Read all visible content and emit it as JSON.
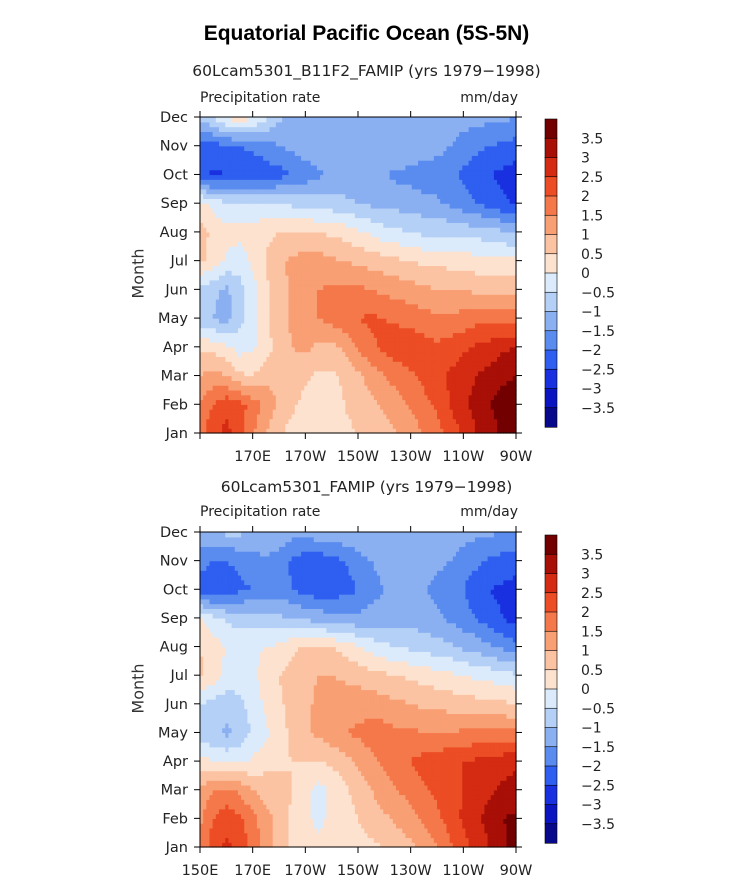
{
  "title": "Equatorial Pacific Ocean (5S-5N)",
  "chart_data": [
    {
      "type": "heatmap",
      "title": "60Lcam5301_B11F2_FAMIP (yrs 1979−1998)",
      "subtitle_left": "Precipitation rate",
      "subtitle_right": "mm/day",
      "ylabel": "Month",
      "xlabel": "",
      "x_tick_labels": [
        "",
        "170E",
        "170W",
        "150W",
        "130W",
        "110W",
        "90W"
      ],
      "x_tick_lons": [
        150,
        170,
        190,
        210,
        230,
        250,
        270
      ],
      "y_tick_labels": [
        "Jan",
        "Feb",
        "Mar",
        "Apr",
        "May",
        "Jun",
        "Jul",
        "Aug",
        "Sep",
        "Oct",
        "Nov",
        "Dec"
      ],
      "levels": [
        -3.5,
        -3,
        -2.5,
        -2,
        -1.5,
        -1,
        -0.5,
        0,
        0.5,
        1,
        1.5,
        2,
        2.5,
        3,
        3.5
      ],
      "colorbar_labels": [
        "3.5",
        "3",
        "2.5",
        "2",
        "1.5",
        "1",
        "0.5",
        "0",
        "−0.5",
        "−1",
        "−1.5",
        "−2",
        "−2.5",
        "−3",
        "−3.5"
      ],
      "colors": [
        "#08088c",
        "#0a14c0",
        "#1830e0",
        "#2e5ff0",
        "#5a8cf0",
        "#8bb0f2",
        "#b4d0f6",
        "#dcebfb",
        "#fde2cf",
        "#fcc3a3",
        "#f99f74",
        "#f5784a",
        "#ec4d25",
        "#d42b12",
        "#a80f06",
        "#720000"
      ],
      "field": {
        "lons": [
          150,
          155,
          160,
          165,
          170,
          175,
          180,
          185,
          190,
          195,
          200,
          205,
          210,
          215,
          220,
          225,
          230,
          235,
          240,
          245,
          250,
          255,
          260,
          265,
          270
        ],
        "months": [
          "Jan",
          "Feb",
          "Mar",
          "Apr",
          "May",
          "Jun",
          "Jul",
          "Aug",
          "Sep",
          "Oct",
          "Nov",
          "Dec"
        ],
        "values": [
          [
            1.8,
            2.4,
            2.6,
            2.3,
            1.6,
            1.0,
            0.6,
            0.3,
            0.2,
            0.2,
            0.3,
            0.4,
            0.5,
            0.6,
            0.8,
            1.0,
            1.2,
            1.5,
            1.8,
            2.2,
            2.6,
            3.0,
            3.3,
            3.6,
            3.8
          ],
          [
            1.5,
            2.0,
            2.4,
            2.2,
            1.8,
            1.3,
            0.9,
            0.6,
            0.3,
            0.2,
            0.3,
            0.5,
            0.7,
            0.9,
            1.1,
            1.3,
            1.6,
            1.9,
            2.1,
            2.5,
            2.9,
            3.2,
            3.5,
            3.7,
            3.8
          ],
          [
            1.0,
            1.2,
            1.0,
            0.6,
            0.5,
            0.8,
            1.0,
            0.9,
            0.6,
            0.4,
            0.4,
            0.6,
            0.9,
            1.2,
            1.5,
            1.7,
            1.9,
            2.1,
            2.3,
            2.6,
            2.8,
            3.0,
            3.2,
            3.4,
            3.5
          ],
          [
            0.4,
            0.3,
            0.1,
            -0.2,
            -0.1,
            0.3,
            0.7,
            1.0,
            1.1,
            0.9,
            0.8,
            1.1,
            1.6,
            1.9,
            2.1,
            2.3,
            2.4,
            2.2,
            2.1,
            2.2,
            2.4,
            2.6,
            2.7,
            2.9,
            3.0
          ],
          [
            -0.9,
            -1.0,
            -1.2,
            -0.7,
            -0.2,
            0.4,
            0.8,
            1.1,
            1.3,
            1.5,
            1.7,
            1.9,
            2.0,
            2.1,
            2.0,
            1.9,
            1.8,
            1.7,
            1.6,
            1.6,
            1.7,
            1.8,
            1.8,
            1.8,
            1.8
          ],
          [
            -0.6,
            -0.9,
            -1.1,
            -0.7,
            -0.2,
            0.4,
            0.8,
            1.1,
            1.3,
            1.5,
            1.6,
            1.6,
            1.6,
            1.5,
            1.4,
            1.3,
            1.2,
            1.1,
            1.0,
            1.0,
            1.0,
            0.9,
            0.9,
            0.9,
            0.8
          ],
          [
            0.6,
            0.3,
            -0.1,
            -0.3,
            0.1,
            0.5,
            0.9,
            1.1,
            1.2,
            1.2,
            1.1,
            1.0,
            0.9,
            0.8,
            0.7,
            0.6,
            0.5,
            0.4,
            0.4,
            0.3,
            0.3,
            0.2,
            0.2,
            0.1,
            0.1
          ],
          [
            0.7,
            0.4,
            0.2,
            0.2,
            0.3,
            0.4,
            0.5,
            0.6,
            0.6,
            0.5,
            0.4,
            0.3,
            0.1,
            -0.1,
            -0.3,
            -0.4,
            -0.5,
            -0.6,
            -0.6,
            -0.6,
            -0.7,
            -0.7,
            -0.8,
            -0.9,
            -1.0
          ],
          [
            0.2,
            -0.2,
            -0.4,
            -0.4,
            -0.5,
            -0.5,
            -0.5,
            -0.6,
            -0.7,
            -0.8,
            -0.8,
            -0.9,
            -1.0,
            -1.1,
            -1.1,
            -1.2,
            -1.2,
            -1.3,
            -1.4,
            -1.6,
            -1.8,
            -2.0,
            -2.2,
            -2.4,
            -2.6
          ],
          [
            -2.3,
            -2.6,
            -2.5,
            -2.4,
            -2.4,
            -2.3,
            -2.2,
            -2.0,
            -1.8,
            -1.6,
            -1.4,
            -1.3,
            -1.3,
            -1.4,
            -1.5,
            -1.6,
            -1.7,
            -1.8,
            -1.8,
            -1.9,
            -2.1,
            -2.3,
            -2.5,
            -2.6,
            -2.8
          ],
          [
            -2.1,
            -2.2,
            -2.1,
            -2.0,
            -1.9,
            -1.7,
            -1.5,
            -1.4,
            -1.2,
            -1.1,
            -1.0,
            -1.0,
            -1.0,
            -1.0,
            -1.0,
            -1.0,
            -1.1,
            -1.2,
            -1.3,
            -1.5,
            -1.7,
            -1.9,
            -2.0,
            -2.1,
            -2.2
          ],
          [
            -0.9,
            -0.5,
            0.1,
            0.3,
            0.1,
            -0.4,
            -0.9,
            -1.2,
            -1.3,
            -1.3,
            -1.2,
            -1.1,
            -1.1,
            -1.1,
            -1.1,
            -1.1,
            -1.1,
            -1.1,
            -1.2,
            -1.2,
            -1.3,
            -1.3,
            -1.4,
            -1.4,
            -1.5
          ]
        ]
      }
    },
    {
      "type": "heatmap",
      "title": "60Lcam5301_FAMIP (yrs 1979−1998)",
      "subtitle_left": "Precipitation rate",
      "subtitle_right": "mm/day",
      "ylabel": "Month",
      "xlabel": "",
      "x_tick_labels": [
        "150E",
        "170E",
        "170W",
        "150W",
        "130W",
        "110W",
        "90W"
      ],
      "x_tick_lons": [
        150,
        170,
        190,
        210,
        230,
        250,
        270
      ],
      "y_tick_labels": [
        "Jan",
        "Feb",
        "Mar",
        "Apr",
        "May",
        "Jun",
        "Jul",
        "Aug",
        "Sep",
        "Oct",
        "Nov",
        "Dec"
      ],
      "levels": [
        -3.5,
        -3,
        -2.5,
        -2,
        -1.5,
        -1,
        -0.5,
        0,
        0.5,
        1,
        1.5,
        2,
        2.5,
        3,
        3.5
      ],
      "colorbar_labels": [
        "3.5",
        "3",
        "2.5",
        "2",
        "1.5",
        "1",
        "0.5",
        "0",
        "−0.5",
        "−1",
        "−1.5",
        "−2",
        "−2.5",
        "−3",
        "−3.5"
      ],
      "colors": [
        "#08088c",
        "#0a14c0",
        "#1830e0",
        "#2e5ff0",
        "#5a8cf0",
        "#8bb0f2",
        "#b4d0f6",
        "#dcebfb",
        "#fde2cf",
        "#fcc3a3",
        "#f99f74",
        "#f5784a",
        "#ec4d25",
        "#d42b12",
        "#a80f06",
        "#720000"
      ],
      "field": {
        "lons": [
          150,
          155,
          160,
          165,
          170,
          175,
          180,
          185,
          190,
          195,
          200,
          205,
          210,
          215,
          220,
          225,
          230,
          235,
          240,
          245,
          250,
          255,
          260,
          265,
          270
        ],
        "months": [
          "Jan",
          "Feb",
          "Mar",
          "Apr",
          "May",
          "Jun",
          "Jul",
          "Aug",
          "Sep",
          "Oct",
          "Nov",
          "Dec"
        ],
        "values": [
          [
            1.6,
            2.3,
            2.6,
            2.4,
            1.8,
            1.2,
            0.7,
            0.4,
            0.2,
            0.1,
            0.1,
            0.2,
            0.3,
            0.4,
            0.5,
            0.7,
            0.9,
            1.2,
            1.5,
            1.9,
            2.3,
            2.7,
            3.0,
            3.4,
            3.7
          ],
          [
            1.4,
            2.0,
            2.3,
            2.1,
            1.7,
            1.2,
            0.8,
            0.4,
            0.1,
            -0.1,
            0.1,
            0.3,
            0.5,
            0.7,
            0.9,
            1.1,
            1.3,
            1.6,
            1.9,
            2.2,
            2.6,
            2.9,
            3.2,
            3.5,
            3.6
          ],
          [
            1.1,
            1.5,
            1.6,
            1.4,
            1.0,
            0.8,
            0.7,
            0.5,
            0.2,
            -0.2,
            0.1,
            0.4,
            0.7,
            1.0,
            1.3,
            1.5,
            1.7,
            1.9,
            2.1,
            2.3,
            2.5,
            2.7,
            2.9,
            3.1,
            3.2
          ],
          [
            0.2,
            0.0,
            -0.1,
            -0.1,
            0.1,
            0.3,
            0.4,
            0.5,
            0.5,
            0.5,
            0.6,
            0.8,
            1.1,
            1.4,
            1.6,
            1.8,
            2.0,
            2.2,
            2.3,
            2.4,
            2.5,
            2.6,
            2.7,
            2.8,
            2.9
          ],
          [
            -0.8,
            -0.9,
            -1.1,
            -0.9,
            -0.4,
            -0.1,
            0.3,
            0.6,
            0.9,
            1.1,
            1.3,
            1.5,
            1.6,
            1.7,
            1.7,
            1.6,
            1.6,
            1.5,
            1.5,
            1.5,
            1.6,
            1.6,
            1.6,
            1.6,
            1.6
          ],
          [
            -0.5,
            -0.7,
            -0.8,
            -0.6,
            -0.3,
            0.1,
            0.4,
            0.7,
            0.9,
            1.1,
            1.2,
            1.3,
            1.3,
            1.3,
            1.2,
            1.1,
            1.0,
            0.9,
            0.9,
            0.8,
            0.8,
            0.7,
            0.7,
            0.6,
            0.5
          ],
          [
            0.6,
            0.3,
            -0.2,
            -0.3,
            -0.1,
            0.2,
            0.5,
            0.7,
            0.9,
            1.0,
            1.0,
            0.9,
            0.8,
            0.7,
            0.6,
            0.5,
            0.4,
            0.3,
            0.2,
            0.1,
            0.0,
            -0.1,
            -0.2,
            -0.3,
            -0.4
          ],
          [
            0.5,
            0.2,
            0.0,
            -0.1,
            -0.1,
            0.0,
            0.1,
            0.4,
            0.6,
            0.6,
            0.5,
            0.3,
            0.1,
            -0.2,
            -0.4,
            -0.5,
            -0.6,
            -0.7,
            -0.8,
            -0.9,
            -1.1,
            -1.2,
            -1.4,
            -1.6,
            -1.8
          ],
          [
            0.1,
            -0.3,
            -0.6,
            -0.7,
            -0.7,
            -0.8,
            -0.9,
            -1.0,
            -1.1,
            -1.2,
            -1.3,
            -1.3,
            -1.4,
            -1.3,
            -1.2,
            -1.2,
            -1.2,
            -1.3,
            -1.4,
            -1.6,
            -1.8,
            -2.0,
            -2.3,
            -2.5,
            -2.7
          ],
          [
            -2.3,
            -2.5,
            -2.3,
            -2.1,
            -2.0,
            -1.8,
            -1.7,
            -2.0,
            -2.2,
            -2.3,
            -2.3,
            -2.2,
            -2.0,
            -1.7,
            -1.5,
            -1.4,
            -1.4,
            -1.5,
            -1.6,
            -1.8,
            -2.0,
            -2.3,
            -2.5,
            -2.6,
            -2.7
          ],
          [
            -1.8,
            -2.0,
            -2.0,
            -1.9,
            -1.7,
            -1.6,
            -1.7,
            -2.1,
            -2.3,
            -2.3,
            -2.2,
            -2.0,
            -1.7,
            -1.5,
            -1.3,
            -1.2,
            -1.2,
            -1.3,
            -1.4,
            -1.5,
            -1.7,
            -1.9,
            -2.1,
            -2.2,
            -2.3
          ],
          [
            -1.2,
            -1.1,
            -0.9,
            -0.9,
            -1.0,
            -1.1,
            -1.2,
            -1.3,
            -1.3,
            -1.2,
            -1.2,
            -1.1,
            -1.1,
            -1.1,
            -1.1,
            -1.1,
            -1.2,
            -1.2,
            -1.2,
            -1.3,
            -1.3,
            -1.4,
            -1.4,
            -1.5,
            -1.6
          ]
        ]
      }
    }
  ]
}
